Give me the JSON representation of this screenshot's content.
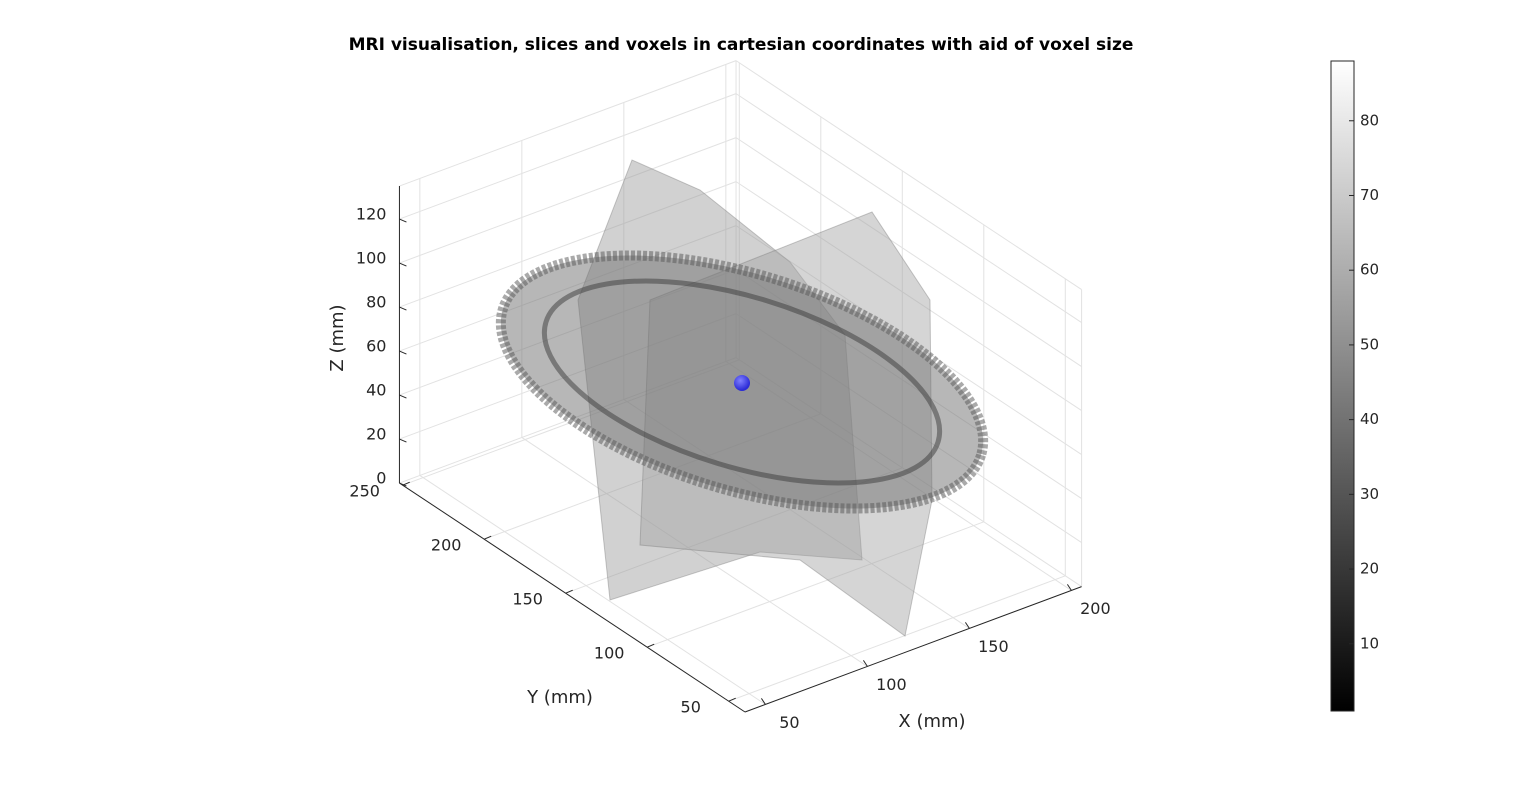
{
  "chart_data": {
    "type": "slice3d",
    "title": "MRI visualisation, slices and voxels in cartesian coordinates with aid of voxel size",
    "xlabel": "X (mm)",
    "ylabel": "Y (mm)",
    "zlabel": "Z (mm)",
    "xlim": [
      40,
      205
    ],
    "ylim": [
      40,
      252
    ],
    "zlim": [
      0,
      135
    ],
    "xticks": [
      50,
      100,
      150,
      200
    ],
    "yticks": [
      50,
      100,
      150,
      200,
      250
    ],
    "zticks": [
      0,
      20,
      40,
      60,
      80,
      100,
      120
    ],
    "grid": true,
    "marker_color": "#2b2bd6",
    "colorbar": {
      "clim": [
        1,
        88
      ],
      "ticks": [
        10,
        20,
        30,
        40,
        50,
        60,
        70,
        80
      ]
    }
  }
}
